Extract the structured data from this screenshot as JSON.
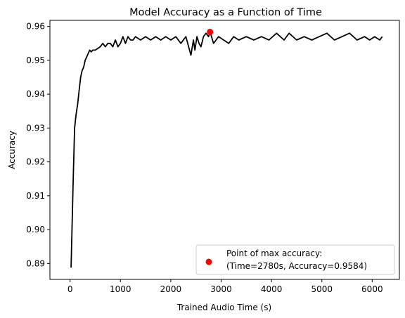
{
  "chart_data": {
    "type": "line",
    "title": "Model Accuracy as a Function of Time",
    "xlabel": "Trained Audio Time (s)",
    "ylabel": "Accuracy",
    "xlim": [
      -400,
      6540
    ],
    "ylim": [
      0.8853,
      0.9618
    ],
    "xticks": [
      0,
      1000,
      2000,
      3000,
      4000,
      5000,
      6000
    ],
    "yticks": [
      0.89,
      0.9,
      0.91,
      0.92,
      0.93,
      0.94,
      0.95,
      0.96
    ],
    "grid": false,
    "series": [
      {
        "color": "#000000",
        "x": [
          20,
          60,
          90,
          120,
          150,
          180,
          210,
          240,
          270,
          300,
          330,
          360,
          390,
          420,
          450,
          500,
          550,
          600,
          650,
          700,
          750,
          800,
          850,
          900,
          950,
          1000,
          1050,
          1100,
          1150,
          1200,
          1250,
          1300,
          1400,
          1500,
          1600,
          1700,
          1800,
          1900,
          2000,
          2100,
          2200,
          2300,
          2400,
          2450,
          2480,
          2520,
          2560,
          2600,
          2650,
          2700,
          2750,
          2780,
          2850,
          2950,
          3050,
          3150,
          3250,
          3350,
          3500,
          3650,
          3800,
          3950,
          4100,
          4250,
          4350,
          4500,
          4650,
          4800,
          4950,
          5100,
          5250,
          5400,
          5550,
          5700,
          5850,
          5950,
          6050,
          6150,
          6200
        ],
        "y": [
          0.8888,
          0.913,
          0.93,
          0.934,
          0.937,
          0.941,
          0.945,
          0.947,
          0.948,
          0.95,
          0.951,
          0.952,
          0.953,
          0.9525,
          0.953,
          0.953,
          0.9535,
          0.954,
          0.955,
          0.954,
          0.955,
          0.955,
          0.954,
          0.956,
          0.954,
          0.955,
          0.957,
          0.955,
          0.957,
          0.956,
          0.956,
          0.957,
          0.956,
          0.957,
          0.956,
          0.957,
          0.956,
          0.957,
          0.956,
          0.957,
          0.955,
          0.957,
          0.9515,
          0.956,
          0.953,
          0.957,
          0.955,
          0.954,
          0.957,
          0.958,
          0.957,
          0.9584,
          0.955,
          0.957,
          0.956,
          0.955,
          0.957,
          0.956,
          0.957,
          0.956,
          0.957,
          0.956,
          0.958,
          0.956,
          0.958,
          0.956,
          0.957,
          0.956,
          0.957,
          0.958,
          0.956,
          0.957,
          0.958,
          0.956,
          0.957,
          0.956,
          0.957,
          0.956,
          0.957
        ]
      }
    ],
    "max_point": {
      "x": 2780,
      "y": 0.9584,
      "color": "#ff0000",
      "label_line1": "Point of max accuracy:",
      "label_line2": "(Time=2780s, Accuracy=0.9584)"
    },
    "legend": {
      "position": "bottom-right"
    }
  }
}
